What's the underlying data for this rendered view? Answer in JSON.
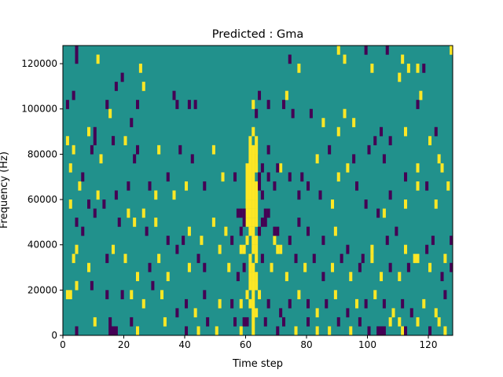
{
  "chart_data": {
    "type": "heatmap",
    "title": "Predicted : Gma",
    "xlabel": "Time step",
    "ylabel": "Frequency (Hz)",
    "xlim": [
      0,
      128
    ],
    "ylim": [
      0,
      128000
    ],
    "x_ticks": [
      0,
      20,
      40,
      60,
      80,
      100,
      120
    ],
    "x_tick_labels": [
      "0",
      "20",
      "40",
      "60",
      "80",
      "100",
      "120"
    ],
    "y_ticks": [
      0,
      20000,
      40000,
      60000,
      80000,
      100000,
      120000
    ],
    "y_tick_labels": [
      "0",
      "20000",
      "40000",
      "60000",
      "80000",
      "100000",
      "120000"
    ],
    "grid": false,
    "colormap": "viridis",
    "levels": [
      {
        "value": -1,
        "color": "#440154"
      },
      {
        "value": 0,
        "color": "#21918c"
      },
      {
        "value": 1,
        "color": "#fde725"
      }
    ],
    "background_value": 0,
    "freq_bin_hz": 4000,
    "cells": [
      [
        4,
        31,
        -1
      ],
      [
        4,
        30,
        -1
      ],
      [
        11,
        30,
        1
      ],
      [
        19,
        28,
        -1
      ],
      [
        25,
        29,
        1
      ],
      [
        3,
        26,
        -1
      ],
      [
        17,
        27,
        -1
      ],
      [
        26,
        27,
        1
      ],
      [
        14,
        25,
        -1
      ],
      [
        24,
        25,
        -1
      ],
      [
        1,
        25,
        -1
      ],
      [
        1,
        21,
        1
      ],
      [
        8,
        22,
        1
      ],
      [
        15,
        24,
        1
      ],
      [
        22,
        23,
        -1
      ],
      [
        31,
        20,
        1
      ],
      [
        16,
        21,
        -1
      ],
      [
        20,
        21,
        1
      ],
      [
        10,
        22,
        -1
      ],
      [
        10,
        21,
        -1
      ],
      [
        16,
        21,
        -1
      ],
      [
        36,
        26,
        -1
      ],
      [
        37,
        25,
        -1
      ],
      [
        41,
        25,
        -1
      ],
      [
        43,
        25,
        -1
      ],
      [
        62,
        25,
        1
      ],
      [
        63,
        24,
        -1
      ],
      [
        64,
        26,
        -1
      ],
      [
        67,
        25,
        -1
      ],
      [
        72,
        25,
        -1
      ],
      [
        73,
        26,
        1
      ],
      [
        75,
        24,
        -1
      ],
      [
        81,
        24,
        -1
      ],
      [
        85,
        23,
        1
      ],
      [
        90,
        22,
        1
      ],
      [
        92,
        24,
        1
      ],
      [
        95,
        23,
        1
      ],
      [
        102,
        21,
        -1
      ],
      [
        104,
        22,
        -1
      ],
      [
        107,
        21,
        -1
      ],
      [
        112,
        22,
        1
      ],
      [
        116,
        25,
        -1
      ],
      [
        117,
        26,
        1
      ],
      [
        120,
        21,
        1
      ],
      [
        122,
        22,
        -1
      ],
      [
        127,
        31,
        1
      ],
      [
        74,
        30,
        -1
      ],
      [
        77,
        29,
        1
      ],
      [
        90,
        31,
        1
      ],
      [
        92,
        30,
        1
      ],
      [
        101,
        29,
        1
      ],
      [
        106,
        31,
        -1
      ],
      [
        110,
        28,
        1
      ],
      [
        113,
        29,
        1
      ],
      [
        116,
        29,
        1
      ],
      [
        118,
        29,
        -1
      ],
      [
        99,
        31,
        -1
      ],
      [
        111,
        30,
        1
      ],
      [
        8,
        14,
        -1
      ],
      [
        5,
        16,
        1
      ],
      [
        6,
        17,
        -1
      ],
      [
        11,
        15,
        1
      ],
      [
        13,
        14,
        -1
      ],
      [
        17,
        15,
        -1
      ],
      [
        21,
        16,
        -1
      ],
      [
        26,
        13,
        1
      ],
      [
        28,
        16,
        -1
      ],
      [
        30,
        15,
        1
      ],
      [
        34,
        17,
        -1
      ],
      [
        36,
        15,
        1
      ],
      [
        40,
        16,
        1
      ],
      [
        46,
        16,
        -1
      ],
      [
        52,
        17,
        1
      ],
      [
        56,
        17,
        -1
      ],
      [
        60,
        18,
        1
      ],
      [
        63,
        19,
        -1
      ],
      [
        65,
        18,
        -1
      ],
      [
        67,
        17,
        -1
      ],
      [
        69,
        16,
        -1
      ],
      [
        71,
        18,
        1
      ],
      [
        74,
        17,
        -1
      ],
      [
        77,
        15,
        -1
      ],
      [
        80,
        16,
        -1
      ],
      [
        84,
        15,
        -1
      ],
      [
        88,
        14,
        1
      ],
      [
        90,
        17,
        1
      ],
      [
        96,
        16,
        -1
      ],
      [
        99,
        14,
        -1
      ],
      [
        103,
        13,
        -1
      ],
      [
        105,
        13,
        1
      ],
      [
        107,
        15,
        -1
      ],
      [
        112,
        14,
        1
      ],
      [
        116,
        16,
        1
      ],
      [
        119,
        16,
        -1
      ],
      [
        122,
        14,
        1
      ],
      [
        124,
        18,
        1
      ],
      [
        126,
        16,
        1
      ],
      [
        3,
        20,
        1
      ],
      [
        2,
        18,
        1
      ],
      [
        9,
        20,
        -1
      ],
      [
        12,
        19,
        1
      ],
      [
        23,
        19,
        -1
      ],
      [
        24,
        20,
        -1
      ],
      [
        38,
        20,
        -1
      ],
      [
        42,
        19,
        -1
      ],
      [
        49,
        20,
        1
      ],
      [
        61,
        20,
        1
      ],
      [
        63,
        21,
        1
      ],
      [
        67,
        20,
        -1
      ],
      [
        70,
        18,
        -1
      ],
      [
        78,
        17,
        -1
      ],
      [
        83,
        19,
        1
      ],
      [
        87,
        20,
        -1
      ],
      [
        93,
        18,
        1
      ],
      [
        95,
        19,
        -1
      ],
      [
        100,
        20,
        -1
      ],
      [
        105,
        19,
        -1
      ],
      [
        112,
        17,
        -1
      ],
      [
        116,
        18,
        1
      ],
      [
        123,
        19,
        1
      ],
      [
        2,
        14,
        1
      ],
      [
        4,
        12,
        -1
      ],
      [
        6,
        11,
        -1
      ],
      [
        10,
        13,
        -1
      ],
      [
        18,
        12,
        -1
      ],
      [
        21,
        13,
        1
      ],
      [
        23,
        12,
        1
      ],
      [
        27,
        11,
        -1
      ],
      [
        30,
        12,
        1
      ],
      [
        34,
        10,
        -1
      ],
      [
        39,
        10,
        -1
      ],
      [
        41,
        11,
        1
      ],
      [
        45,
        10,
        1
      ],
      [
        49,
        12,
        1
      ],
      [
        53,
        11,
        1
      ],
      [
        55,
        10,
        -1
      ],
      [
        58,
        11,
        -1
      ],
      [
        60,
        10,
        1
      ],
      [
        64,
        11,
        -1
      ],
      [
        66,
        12,
        -1
      ],
      [
        69,
        10,
        1
      ],
      [
        71,
        9,
        1
      ],
      [
        74,
        10,
        -1
      ],
      [
        77,
        12,
        -1
      ],
      [
        80,
        11,
        -1
      ],
      [
        85,
        10,
        -1
      ],
      [
        89,
        11,
        1
      ],
      [
        93,
        9,
        -1
      ],
      [
        98,
        8,
        -1
      ],
      [
        101,
        9,
        1
      ],
      [
        106,
        10,
        -1
      ],
      [
        109,
        11,
        -1
      ],
      [
        112,
        9,
        1
      ],
      [
        115,
        8,
        1
      ],
      [
        119,
        9,
        -1
      ],
      [
        121,
        10,
        -1
      ],
      [
        125,
        8,
        1
      ],
      [
        127,
        10,
        -1
      ],
      [
        3,
        8,
        1
      ],
      [
        4,
        9,
        1
      ],
      [
        8,
        7,
        1
      ],
      [
        14,
        8,
        -1
      ],
      [
        16,
        9,
        1
      ],
      [
        20,
        8,
        1
      ],
      [
        24,
        6,
        1
      ],
      [
        28,
        7,
        -1
      ],
      [
        31,
        8,
        1
      ],
      [
        34,
        6,
        1
      ],
      [
        37,
        9,
        -1
      ],
      [
        41,
        7,
        1
      ],
      [
        44,
        8,
        -1
      ],
      [
        46,
        7,
        -1
      ],
      [
        51,
        9,
        1
      ],
      [
        54,
        7,
        1
      ],
      [
        57,
        6,
        -1
      ],
      [
        59,
        7,
        -1
      ],
      [
        62,
        7,
        1
      ],
      [
        65,
        8,
        -1
      ],
      [
        68,
        7,
        1
      ],
      [
        70,
        9,
        1
      ],
      [
        73,
        6,
        1
      ],
      [
        76,
        8,
        -1
      ],
      [
        79,
        7,
        1
      ],
      [
        82,
        8,
        -1
      ],
      [
        85,
        6,
        -1
      ],
      [
        88,
        7,
        1
      ],
      [
        91,
        8,
        -1
      ],
      [
        94,
        6,
        1
      ],
      [
        97,
        7,
        -1
      ],
      [
        101,
        8,
        1
      ],
      [
        104,
        6,
        1
      ],
      [
        107,
        7,
        -1
      ],
      [
        110,
        6,
        1
      ],
      [
        113,
        7,
        -1
      ],
      [
        116,
        8,
        1
      ],
      [
        120,
        7,
        1
      ],
      [
        124,
        6,
        -1
      ],
      [
        127,
        7,
        -1
      ],
      [
        1,
        4,
        1
      ],
      [
        2,
        4,
        1
      ],
      [
        4,
        5,
        1
      ],
      [
        9,
        5,
        -1
      ],
      [
        14,
        4,
        -1
      ],
      [
        19,
        4,
        -1
      ],
      [
        22,
        4,
        1
      ],
      [
        26,
        3,
        1
      ],
      [
        29,
        5,
        -1
      ],
      [
        32,
        4,
        1
      ],
      [
        37,
        2,
        -1
      ],
      [
        40,
        3,
        -1
      ],
      [
        43,
        2,
        1
      ],
      [
        46,
        4,
        -1
      ],
      [
        51,
        3,
        1
      ],
      [
        55,
        3,
        -1
      ],
      [
        58,
        3,
        1
      ],
      [
        61,
        3,
        1
      ],
      [
        64,
        4,
        1
      ],
      [
        67,
        3,
        -1
      ],
      [
        71,
        2,
        -1
      ],
      [
        74,
        3,
        -1
      ],
      [
        77,
        4,
        1
      ],
      [
        80,
        3,
        -1
      ],
      [
        83,
        2,
        1
      ],
      [
        86,
        3,
        -1
      ],
      [
        89,
        4,
        1
      ],
      [
        93,
        2,
        -1
      ],
      [
        96,
        3,
        1
      ],
      [
        99,
        3,
        -1
      ],
      [
        102,
        4,
        1
      ],
      [
        105,
        3,
        -1
      ],
      [
        108,
        2,
        1
      ],
      [
        111,
        3,
        -1
      ],
      [
        114,
        2,
        -1
      ],
      [
        118,
        3,
        1
      ],
      [
        122,
        2,
        1
      ],
      [
        125,
        4,
        -1
      ],
      [
        4,
        0,
        -1
      ],
      [
        10,
        1,
        1
      ],
      [
        15,
        1,
        -1
      ],
      [
        15,
        0,
        -1
      ],
      [
        16,
        0,
        -1
      ],
      [
        17,
        0,
        -1
      ],
      [
        22,
        1,
        -1
      ],
      [
        24,
        0,
        1
      ],
      [
        33,
        1,
        1
      ],
      [
        40,
        0,
        -1
      ],
      [
        44,
        0,
        1
      ],
      [
        47,
        1,
        -1
      ],
      [
        50,
        0,
        1
      ],
      [
        56,
        1,
        -1
      ],
      [
        58,
        0,
        1
      ],
      [
        62,
        0,
        1
      ],
      [
        62,
        1,
        1
      ],
      [
        63,
        2,
        1
      ],
      [
        66,
        1,
        -1
      ],
      [
        70,
        0,
        -1
      ],
      [
        72,
        1,
        -1
      ],
      [
        76,
        0,
        1
      ],
      [
        80,
        1,
        -1
      ],
      [
        83,
        0,
        1
      ],
      [
        87,
        0,
        1
      ],
      [
        90,
        1,
        -1
      ],
      [
        94,
        0,
        1
      ],
      [
        97,
        1,
        -1
      ],
      [
        100,
        0,
        -1
      ],
      [
        103,
        0,
        -1
      ],
      [
        104,
        0,
        -1
      ],
      [
        105,
        0,
        -1
      ],
      [
        107,
        1,
        1
      ],
      [
        110,
        1,
        1
      ],
      [
        111,
        0,
        1
      ],
      [
        112,
        0,
        -1
      ],
      [
        116,
        1,
        1
      ],
      [
        120,
        0,
        -1
      ],
      [
        123,
        1,
        1
      ],
      [
        125,
        0,
        1
      ],
      [
        60,
        12,
        1
      ],
      [
        60,
        13,
        1
      ],
      [
        60,
        14,
        1
      ],
      [
        60,
        15,
        1
      ],
      [
        60,
        16,
        1
      ],
      [
        60,
        17,
        1
      ],
      [
        61,
        11,
        1
      ],
      [
        61,
        12,
        1
      ],
      [
        61,
        13,
        1
      ],
      [
        61,
        14,
        1
      ],
      [
        61,
        15,
        1
      ],
      [
        61,
        16,
        1
      ],
      [
        61,
        17,
        1
      ],
      [
        61,
        18,
        1
      ],
      [
        61,
        19,
        1
      ],
      [
        61,
        21,
        1
      ],
      [
        62,
        9,
        1
      ],
      [
        62,
        10,
        1
      ],
      [
        62,
        11,
        1
      ],
      [
        62,
        12,
        1
      ],
      [
        62,
        13,
        1
      ],
      [
        62,
        14,
        1
      ],
      [
        62,
        15,
        1
      ],
      [
        62,
        16,
        1
      ],
      [
        62,
        17,
        1
      ],
      [
        62,
        18,
        1
      ],
      [
        62,
        19,
        1
      ],
      [
        62,
        20,
        1
      ],
      [
        62,
        22,
        1
      ],
      [
        63,
        5,
        1
      ],
      [
        63,
        6,
        1
      ],
      [
        63,
        8,
        1
      ],
      [
        63,
        9,
        1
      ],
      [
        63,
        10,
        1
      ],
      [
        63,
        12,
        1
      ],
      [
        63,
        13,
        1
      ],
      [
        63,
        14,
        1
      ],
      [
        63,
        15,
        1
      ],
      [
        63,
        16,
        1
      ],
      [
        63,
        18,
        1
      ],
      [
        63,
        19,
        1
      ],
      [
        63,
        20,
        1
      ],
      [
        64,
        17,
        -1
      ],
      [
        64,
        16,
        -1
      ],
      [
        65,
        15,
        -1
      ],
      [
        57,
        13,
        -1
      ],
      [
        58,
        13,
        -1
      ],
      [
        59,
        12,
        -1
      ],
      [
        59,
        13,
        -1
      ],
      [
        65,
        12,
        -1
      ],
      [
        66,
        13,
        -1
      ],
      [
        67,
        13,
        -1
      ],
      [
        69,
        11,
        -1
      ],
      [
        70,
        11,
        -1
      ],
      [
        58,
        9,
        1
      ],
      [
        59,
        9,
        1
      ],
      [
        60,
        4,
        1
      ],
      [
        61,
        5,
        1
      ],
      [
        61,
        6,
        1
      ],
      [
        61,
        7,
        1
      ],
      [
        61,
        8,
        1
      ],
      [
        60,
        1,
        -1
      ],
      [
        59,
        1,
        -1
      ],
      [
        62,
        2,
        1
      ],
      [
        62,
        3,
        1
      ],
      [
        62,
        4,
        1
      ],
      [
        62,
        5,
        1
      ],
      [
        62,
        6,
        1
      ]
    ]
  }
}
